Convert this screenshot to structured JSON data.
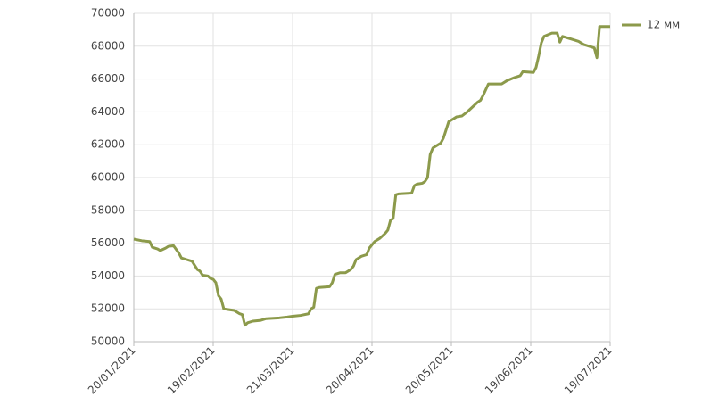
{
  "chart_data": {
    "type": "line",
    "x": [
      "2021-01-20",
      "2021-01-23",
      "2021-01-26",
      "2021-01-27",
      "2021-01-29",
      "2021-01-30",
      "2021-02-01",
      "2021-02-02",
      "2021-02-04",
      "2021-02-06",
      "2021-02-07",
      "2021-02-09",
      "2021-02-11",
      "2021-02-13",
      "2021-02-14",
      "2021-02-15",
      "2021-02-17",
      "2021-02-18",
      "2021-02-19",
      "2021-02-20",
      "2021-02-21",
      "2021-02-22",
      "2021-02-23",
      "2021-02-25",
      "2021-02-27",
      "2021-03-01",
      "2021-03-02",
      "2021-03-03",
      "2021-03-04",
      "2021-03-06",
      "2021-03-09",
      "2021-03-11",
      "2021-03-16",
      "2021-03-19",
      "2021-03-21",
      "2021-03-24",
      "2021-03-27",
      "2021-03-28",
      "2021-03-29",
      "2021-03-30",
      "2021-03-31",
      "2021-04-04",
      "2021-04-05",
      "2021-04-06",
      "2021-04-08",
      "2021-04-10",
      "2021-04-12",
      "2021-04-13",
      "2021-04-14",
      "2021-04-16",
      "2021-04-18",
      "2021-04-19",
      "2021-04-20",
      "2021-04-21",
      "2021-04-23",
      "2021-04-25",
      "2021-04-26",
      "2021-04-27",
      "2021-04-28",
      "2021-04-29",
      "2021-04-30",
      "2021-05-05",
      "2021-05-06",
      "2021-05-07",
      "2021-05-09",
      "2021-05-10",
      "2021-05-11",
      "2021-05-12",
      "2021-05-13",
      "2021-05-15",
      "2021-05-16",
      "2021-05-17",
      "2021-05-18",
      "2021-05-19",
      "2021-05-20",
      "2021-05-22",
      "2021-05-24",
      "2021-05-26",
      "2021-05-28",
      "2021-05-30",
      "2021-05-31",
      "2021-06-01",
      "2021-06-03",
      "2021-06-08",
      "2021-06-10",
      "2021-06-13",
      "2021-06-15",
      "2021-06-16",
      "2021-06-20",
      "2021-06-21",
      "2021-06-22",
      "2021-06-23",
      "2021-06-24",
      "2021-06-27",
      "2021-06-29",
      "2021-06-30",
      "2021-07-01",
      "2021-07-05",
      "2021-07-07",
      "2021-07-09",
      "2021-07-11",
      "2021-07-13",
      "2021-07-14",
      "2021-07-15",
      "2021-07-19"
    ],
    "series": [
      {
        "name": "12 мм",
        "color": "#8c9a4b",
        "values": [
          56250,
          56150,
          56100,
          55750,
          55650,
          55550,
          55700,
          55800,
          55850,
          55400,
          55100,
          55000,
          54900,
          54400,
          54300,
          54050,
          54000,
          53850,
          53800,
          53600,
          52800,
          52600,
          52000,
          51950,
          51900,
          51700,
          51650,
          51000,
          51150,
          51250,
          51300,
          51400,
          51450,
          51500,
          51550,
          51600,
          51700,
          52000,
          52100,
          53250,
          53300,
          53350,
          53600,
          54100,
          54200,
          54200,
          54400,
          54600,
          55000,
          55200,
          55300,
          55700,
          55900,
          56100,
          56300,
          56600,
          56800,
          57400,
          57500,
          58950,
          59000,
          59050,
          59500,
          59600,
          59650,
          59750,
          60000,
          61400,
          61800,
          62000,
          62100,
          62400,
          62900,
          63400,
          63500,
          63700,
          63750,
          64000,
          64300,
          64600,
          64700,
          65000,
          65700,
          65700,
          65900,
          66100,
          66200,
          66450,
          66400,
          66700,
          67400,
          68200,
          68600,
          68800,
          68800,
          68250,
          68600,
          68400,
          68300,
          68100,
          68000,
          67900,
          67300,
          69200,
          69200
        ]
      }
    ],
    "xlim": [
      "2021-01-20",
      "2021-07-19"
    ],
    "xticks": [
      {
        "value": "2021-01-20",
        "label": "20/01/2021"
      },
      {
        "value": "2021-02-19",
        "label": "19/02/2021"
      },
      {
        "value": "2021-03-21",
        "label": "21/03/2021"
      },
      {
        "value": "2021-04-20",
        "label": "20/04/2021"
      },
      {
        "value": "2021-05-20",
        "label": "20/05/2021"
      },
      {
        "value": "2021-06-19",
        "label": "19/06/2021"
      },
      {
        "value": "2021-07-19",
        "label": "19/07/2021"
      }
    ],
    "ylim": [
      50000,
      70000
    ],
    "yticks": [
      50000,
      52000,
      54000,
      56000,
      58000,
      60000,
      62000,
      64000,
      66000,
      68000,
      70000
    ],
    "grid": true,
    "legend": "top-right"
  }
}
